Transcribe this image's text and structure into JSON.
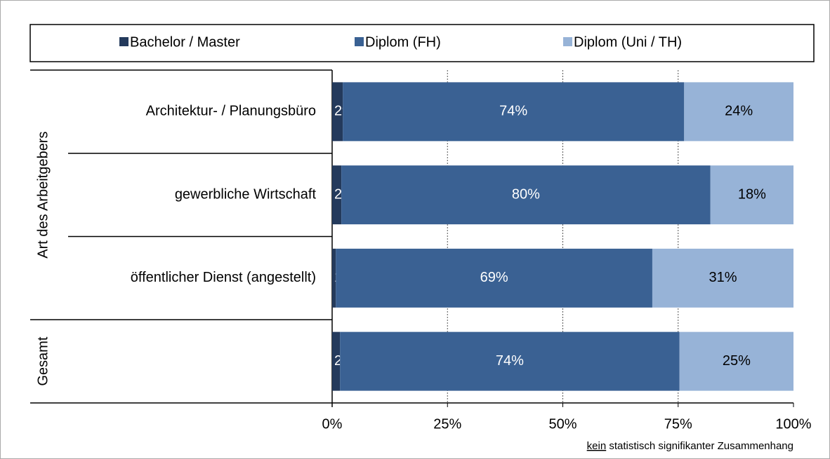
{
  "chart_data": {
    "type": "bar_stacked_horizontal",
    "group_labels": [
      "Art des Arbeitgebers",
      "Gesamt"
    ],
    "categories": [
      "Architektur- / Planungsbüro",
      "gewerbliche Wirtschaft",
      "öffentlicher Dienst (angestellt)",
      null
    ],
    "series": [
      {
        "name": "Bachelor / Master",
        "color": "#243a5c",
        "values": [
          2.3,
          2.0,
          0.8,
          1.7
        ],
        "value_labels": [
          "2%",
          "2%",
          "1%",
          "2%"
        ]
      },
      {
        "name": "Diplom (FH)",
        "color": "#3a6193",
        "values": [
          74.0,
          80.0,
          68.6,
          73.6
        ],
        "value_labels": [
          "74%",
          "80%",
          "69%",
          "74%"
        ]
      },
      {
        "name": "Diplom (Uni / TH)",
        "color": "#97b3d7",
        "values": [
          23.7,
          18.0,
          30.6,
          24.7
        ],
        "value_labels": [
          "24%",
          "18%",
          "31%",
          "25%"
        ]
      }
    ],
    "xlim": [
      0,
      100
    ],
    "xticks": [
      {
        "value": 0,
        "label": "0%"
      },
      {
        "value": 25,
        "label": "25%"
      },
      {
        "value": 50,
        "label": "50%"
      },
      {
        "value": 75,
        "label": "75%"
      },
      {
        "value": 100,
        "label": "100%"
      }
    ],
    "grid": true,
    "note_underlined": "kein",
    "note": "statistisch signifikanter Zusammenhang"
  }
}
